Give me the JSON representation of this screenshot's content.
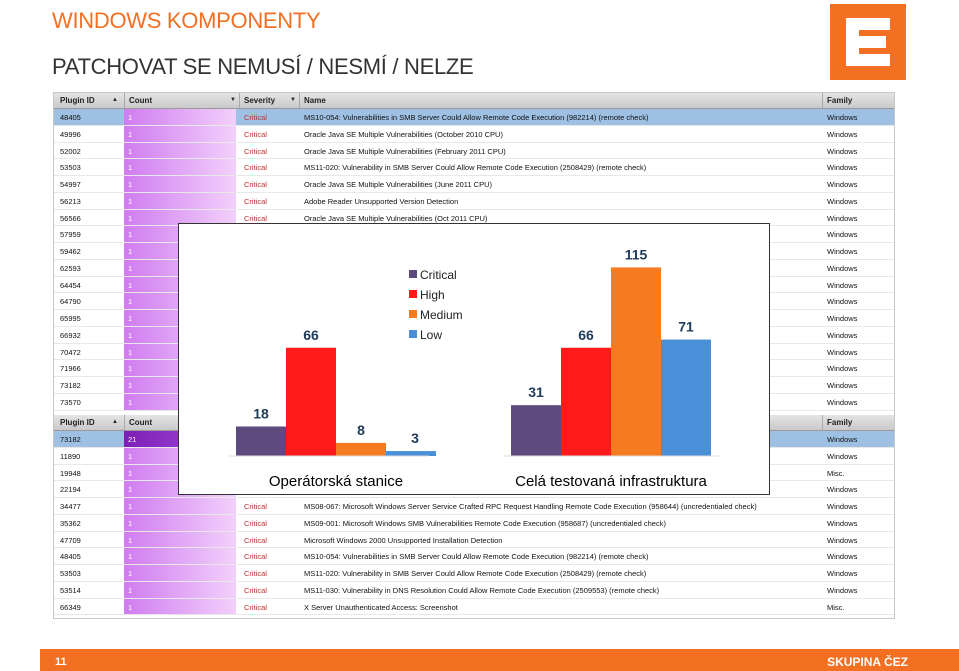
{
  "slide": {
    "title": "WINDOWS KOMPONENTY",
    "subtitle": "PATCHOVAT SE NEMUSÍ / NESMÍ / NELZE",
    "page_number": "11",
    "footer_brand": "SKUPINA ČEZ"
  },
  "colors": {
    "accent": "#f36f21",
    "critical": "#5e4b7e",
    "high": "#ff1a1a",
    "medium": "#f57a20",
    "low": "#4a90d9",
    "count_bar": "#c77be8"
  },
  "table": {
    "columns": [
      "Plugin ID",
      "Count",
      "Severity",
      "Name",
      "Family"
    ],
    "top_rows": [
      {
        "id": "48405",
        "count": "1",
        "severity": "Critical",
        "name": "MS10-054: Vulnerabilities in SMB Server Could Allow Remote Code Execution (982214) (remote check)",
        "family": "Windows",
        "selected": true
      },
      {
        "id": "49996",
        "count": "1",
        "severity": "Critical",
        "name": "Oracle Java SE Multiple Vulnerabilities (October 2010 CPU)",
        "family": "Windows"
      },
      {
        "id": "52002",
        "count": "1",
        "severity": "Critical",
        "name": "Oracle Java SE Multiple Vulnerabilities (February 2011 CPU)",
        "family": "Windows"
      },
      {
        "id": "53503",
        "count": "1",
        "severity": "Critical",
        "name": "MS11-020: Vulnerability in SMB Server Could Allow Remote Code Execution (2508429) (remote check)",
        "family": "Windows"
      },
      {
        "id": "54997",
        "count": "1",
        "severity": "Critical",
        "name": "Oracle Java SE Multiple Vulnerabilities (June 2011 CPU)",
        "family": "Windows"
      },
      {
        "id": "56213",
        "count": "1",
        "severity": "Critical",
        "name": "Adobe Reader Unsupported Version Detection",
        "family": "Windows"
      },
      {
        "id": "56566",
        "count": "1",
        "severity": "Critical",
        "name": "Oracle Java SE Multiple Vulnerabilities (Oct 2011 CPU)",
        "family": "Windows"
      },
      {
        "id": "57959",
        "count": "1",
        "severity": "",
        "name": "",
        "family": "Windows"
      },
      {
        "id": "59462",
        "count": "1",
        "severity": "",
        "name": "",
        "family": "Windows"
      },
      {
        "id": "62593",
        "count": "1",
        "severity": "",
        "name": "",
        "family": "Windows"
      },
      {
        "id": "64454",
        "count": "1",
        "severity": "",
        "name": "",
        "family": "Windows"
      },
      {
        "id": "64790",
        "count": "1",
        "severity": "",
        "name": "",
        "family": "Windows"
      },
      {
        "id": "65995",
        "count": "1",
        "severity": "",
        "name": "",
        "family": "Windows"
      },
      {
        "id": "66932",
        "count": "1",
        "severity": "",
        "name": "",
        "family": "Windows"
      },
      {
        "id": "70472",
        "count": "1",
        "severity": "",
        "name": "",
        "family": "Windows"
      },
      {
        "id": "71966",
        "count": "1",
        "severity": "",
        "name": "",
        "family": "Windows"
      },
      {
        "id": "73182",
        "count": "1",
        "severity": "",
        "name": "",
        "family": "Windows"
      },
      {
        "id": "73570",
        "count": "1",
        "severity": "",
        "name": "",
        "family": "Windows"
      }
    ],
    "bottom_rows": [
      {
        "id": "73182",
        "count": "21",
        "severity": "",
        "name": "",
        "family": "Windows",
        "selected": true,
        "hl": true
      },
      {
        "id": "11890",
        "count": "1",
        "severity": "",
        "name": "",
        "family": "Windows"
      },
      {
        "id": "19948",
        "count": "1",
        "severity": "",
        "name": "",
        "family": "Misc."
      },
      {
        "id": "22194",
        "count": "1",
        "severity": "",
        "name": "",
        "family": "Windows"
      },
      {
        "id": "34477",
        "count": "1",
        "severity": "Critical",
        "name": "MS08-067: Microsoft Windows Server Service Crafted RPC Request Handling Remote Code Execution (958644) (uncredentialed check)",
        "family": "Windows"
      },
      {
        "id": "35362",
        "count": "1",
        "severity": "Critical",
        "name": "MS09-001: Microsoft Windows SMB Vulnerabilities Remote Code Execution (958687) (uncredentialed check)",
        "family": "Windows"
      },
      {
        "id": "47709",
        "count": "1",
        "severity": "Critical",
        "name": "Microsoft Windows 2000 Unsupported Installation Detection",
        "family": "Windows"
      },
      {
        "id": "48405",
        "count": "1",
        "severity": "Critical",
        "name": "MS10-054: Vulnerabilities in SMB Server Could Allow Remote Code Execution (982214) (remote check)",
        "family": "Windows"
      },
      {
        "id": "53503",
        "count": "1",
        "severity": "Critical",
        "name": "MS11-020: Vulnerability in SMB Server Could Allow Remote Code Execution (2508429) (remote check)",
        "family": "Windows"
      },
      {
        "id": "53514",
        "count": "1",
        "severity": "Critical",
        "name": "MS11-030: Vulnerability in DNS Resolution Could Allow Remote Code Execution (2509553) (remote check)",
        "family": "Windows"
      },
      {
        "id": "66349",
        "count": "1",
        "severity": "Critical",
        "name": "X Server Unauthenticated Access: Screenshot",
        "family": "Misc."
      }
    ]
  },
  "chart_data": {
    "type": "bar",
    "categories": [
      "Operátorská stanice",
      "Celá testovaná infrastruktura"
    ],
    "series": [
      {
        "name": "Critical",
        "values": [
          18,
          31
        ]
      },
      {
        "name": "High",
        "values": [
          66,
          66
        ]
      },
      {
        "name": "Medium",
        "values": [
          8,
          115
        ]
      },
      {
        "name": "Low",
        "values": [
          3,
          71
        ]
      }
    ],
    "legend": "top-center",
    "ylim": [
      0,
      125
    ],
    "grid": false
  }
}
